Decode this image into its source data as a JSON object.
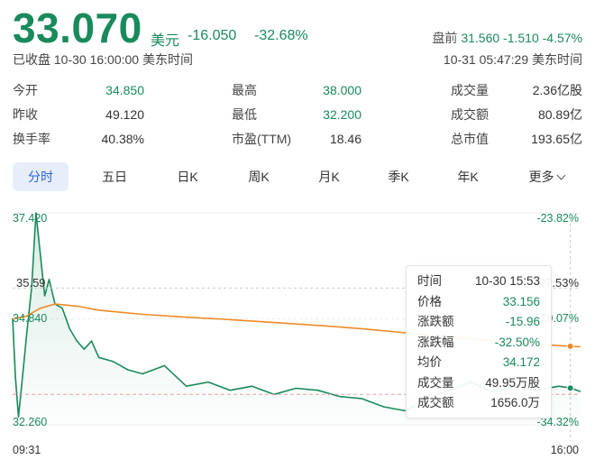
{
  "quote": {
    "price": "33.070",
    "currency": "美元",
    "change": "-16.050",
    "change_pct": "-32.68%",
    "status": "已收盘 10-30 16:00:00 美东时间",
    "premarket_label": "盘前",
    "premarket_price": "31.560",
    "premarket_change": "-1.510",
    "premarket_pct": "-4.57%",
    "premarket_time": "10-31 05:47:29 美东时间"
  },
  "stats": {
    "open_label": "今开",
    "open": "34.850",
    "high_label": "最高",
    "high": "38.000",
    "volume_label": "成交量",
    "volume": "2.36亿股",
    "prev_close_label": "昨收",
    "prev_close": "49.120",
    "low_label": "最低",
    "low": "32.200",
    "turnover_label": "成交额",
    "turnover": "80.89亿",
    "turnover_rate_label": "换手率",
    "turnover_rate": "40.38%",
    "pe_label": "市盈(TTM)",
    "pe": "18.46",
    "market_cap_label": "总市值",
    "market_cap": "193.65亿"
  },
  "tabs": {
    "intraday": "分时",
    "five_day": "五日",
    "daily": "日K",
    "weekly": "周K",
    "monthly": "月K",
    "quarterly": "季K",
    "yearly": "年K",
    "more": "更多"
  },
  "chart_axis": {
    "y_top": "37.420",
    "y_mid": "34.840",
    "y_bottom": "32.260",
    "pct_top": "-23.82%",
    "pct_mid": "-29.07%",
    "pct_bottom": "-34.32%",
    "cursor_price": "35.59",
    "cursor_pct": "-27.53%",
    "x_start": "09:31",
    "x_end": "16:00"
  },
  "tooltip": {
    "time_label": "时间",
    "time": "10-30 15:53",
    "price_label": "价格",
    "price": "33.156",
    "change_label": "涨跌额",
    "change": "-15.96",
    "change_pct_label": "涨跌幅",
    "change_pct": "-32.50%",
    "avg_label": "均价",
    "avg": "34.172",
    "volume_label": "成交量",
    "volume": "49.95万股",
    "turnover_label": "成交额",
    "turnover": "1656.0万"
  },
  "chart_data": {
    "type": "line",
    "xlim": [
      "09:31",
      "16:00"
    ],
    "ylim": [
      32.26,
      37.42
    ],
    "series": [
      {
        "x": [
          "09:31",
          "09:33",
          "09:35",
          "09:38",
          "09:41",
          "09:44",
          "09:47",
          "09:50",
          "09:53",
          "09:56",
          "10:00",
          "10:05",
          "10:10",
          "10:15",
          "10:20",
          "10:25",
          "10:30",
          "10:40",
          "10:50",
          "11:00",
          "11:15",
          "11:30",
          "11:45",
          "12:00",
          "12:15",
          "12:30",
          "12:45",
          "13:00",
          "13:15",
          "13:30",
          "13:45",
          "14:00",
          "14:15",
          "14:30",
          "14:45",
          "15:00",
          "15:15",
          "15:30",
          "15:45",
          "15:53",
          "16:00"
        ],
        "values": [
          34.85,
          33.4,
          32.45,
          33.5,
          34.6,
          35.6,
          37.42,
          36.4,
          35.4,
          35.8,
          35.2,
          35.1,
          34.6,
          34.3,
          34.1,
          34.3,
          33.9,
          33.8,
          33.6,
          33.5,
          33.7,
          33.2,
          33.3,
          33.1,
          33.2,
          33.0,
          33.15,
          33.1,
          32.95,
          32.9,
          32.7,
          32.6,
          32.9,
          33.1,
          33.3,
          33.05,
          33.2,
          33.1,
          33.2,
          33.156,
          33.07
        ]
      },
      {
        "x": [
          "09:31",
          "09:40",
          "09:50",
          "10:00",
          "10:15",
          "10:30",
          "11:00",
          "11:30",
          "12:00",
          "12:30",
          "13:00",
          "13:30",
          "14:00",
          "14:30",
          "15:00",
          "15:30",
          "15:53",
          "16:00"
        ],
        "values": [
          34.84,
          34.9,
          35.1,
          35.2,
          35.15,
          35.05,
          34.95,
          34.88,
          34.82,
          34.75,
          34.68,
          34.6,
          34.5,
          34.4,
          34.3,
          34.22,
          34.172,
          34.16
        ]
      }
    ]
  },
  "colors": {
    "down": "#1a8a5c",
    "up": "#e35a5a",
    "avg_line": "#f08a24",
    "accent": "#2b64d9"
  }
}
